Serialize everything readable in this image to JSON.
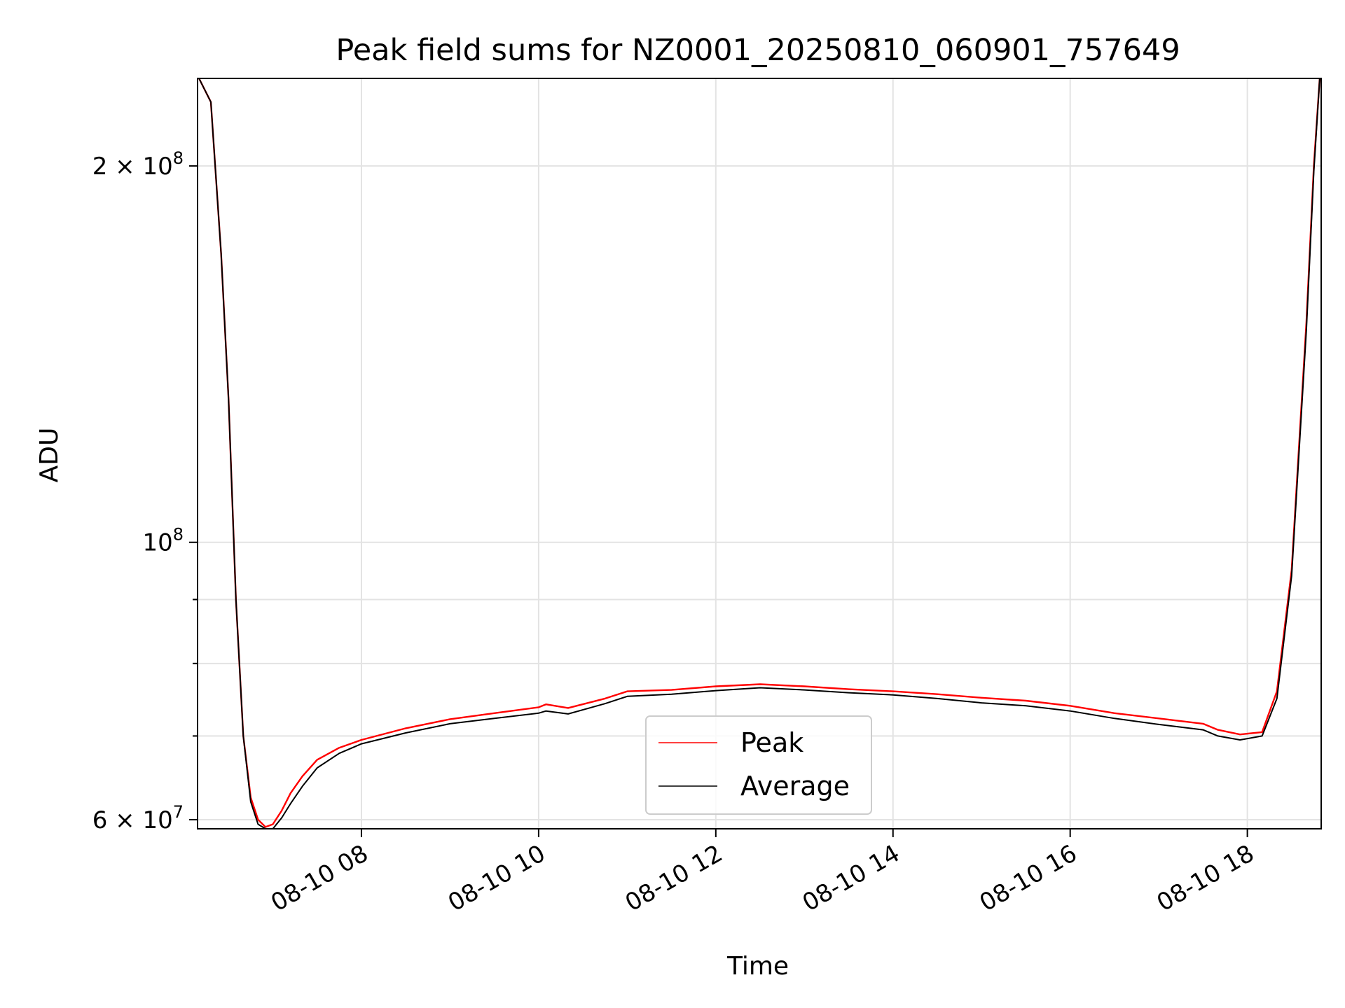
{
  "chart_data": {
    "type": "line",
    "title": "Peak field sums for NZ0001_20250810_060901_757649",
    "xlabel": "Time",
    "ylabel": "ADU",
    "yscale": "log",
    "grid": true,
    "legend_position": "bottom-center",
    "xlim": [
      "2025-08-10 06:09",
      "2025-08-10 18:50"
    ],
    "ylim": [
      59000000,
      235000000
    ],
    "x_ticks": [
      {
        "x": "2025-08-10 08:00",
        "label": "08-10 08"
      },
      {
        "x": "2025-08-10 10:00",
        "label": "08-10 10"
      },
      {
        "x": "2025-08-10 12:00",
        "label": "08-10 12"
      },
      {
        "x": "2025-08-10 14:00",
        "label": "08-10 14"
      },
      {
        "x": "2025-08-10 16:00",
        "label": "08-10 16"
      },
      {
        "x": "2025-08-10 18:00",
        "label": "08-10 18"
      }
    ],
    "y_ticks": [
      {
        "y": 60000000,
        "base": "6 × 10",
        "exp": "7"
      },
      {
        "y": 100000000,
        "base": "10",
        "exp": "8"
      },
      {
        "y": 200000000,
        "base": "2 × 10",
        "exp": "8"
      }
    ],
    "y_minor_ticks": [
      70000000,
      80000000,
      90000000
    ],
    "series": [
      {
        "name": "Peak",
        "color": "#ff0000",
        "x": [
          "2025-08-10 06:10",
          "2025-08-10 06:18",
          "2025-08-10 06:25",
          "2025-08-10 06:30",
          "2025-08-10 06:35",
          "2025-08-10 06:40",
          "2025-08-10 06:45",
          "2025-08-10 06:50",
          "2025-08-10 06:55",
          "2025-08-10 07:00",
          "2025-08-10 07:06",
          "2025-08-10 07:12",
          "2025-08-10 07:20",
          "2025-08-10 07:30",
          "2025-08-10 07:45",
          "2025-08-10 08:00",
          "2025-08-10 08:30",
          "2025-08-10 09:00",
          "2025-08-10 09:30",
          "2025-08-10 10:00",
          "2025-08-10 10:05",
          "2025-08-10 10:20",
          "2025-08-10 10:45",
          "2025-08-10 11:00",
          "2025-08-10 11:30",
          "2025-08-10 12:00",
          "2025-08-10 12:30",
          "2025-08-10 13:00",
          "2025-08-10 13:30",
          "2025-08-10 14:00",
          "2025-08-10 14:30",
          "2025-08-10 15:00",
          "2025-08-10 15:30",
          "2025-08-10 16:00",
          "2025-08-10 16:30",
          "2025-08-10 17:00",
          "2025-08-10 17:30",
          "2025-08-10 17:40",
          "2025-08-10 17:55",
          "2025-08-10 18:10",
          "2025-08-10 18:20",
          "2025-08-10 18:30",
          "2025-08-10 18:40",
          "2025-08-10 18:45",
          "2025-08-10 18:49"
        ],
        "y": [
          235000000,
          225000000,
          170000000,
          130000000,
          90000000,
          70000000,
          62500000,
          60000000,
          59200000,
          59500000,
          61000000,
          63000000,
          65000000,
          67000000,
          68500000,
          69500000,
          71000000,
          72200000,
          73000000,
          73800000,
          74200000,
          73700000,
          75000000,
          76000000,
          76200000,
          76700000,
          77000000,
          76700000,
          76300000,
          76000000,
          75600000,
          75100000,
          74700000,
          74000000,
          73000000,
          72300000,
          71600000,
          70800000,
          70200000,
          70500000,
          76000000,
          95000000,
          150000000,
          200000000,
          235000000
        ]
      },
      {
        "name": "Average",
        "color": "#000000",
        "x": [
          "2025-08-10 06:10",
          "2025-08-10 06:18",
          "2025-08-10 06:25",
          "2025-08-10 06:30",
          "2025-08-10 06:35",
          "2025-08-10 06:40",
          "2025-08-10 06:45",
          "2025-08-10 06:50",
          "2025-08-10 06:55",
          "2025-08-10 07:00",
          "2025-08-10 07:06",
          "2025-08-10 07:12",
          "2025-08-10 07:20",
          "2025-08-10 07:30",
          "2025-08-10 07:45",
          "2025-08-10 08:00",
          "2025-08-10 08:30",
          "2025-08-10 09:00",
          "2025-08-10 09:30",
          "2025-08-10 10:00",
          "2025-08-10 10:05",
          "2025-08-10 10:20",
          "2025-08-10 10:45",
          "2025-08-10 11:00",
          "2025-08-10 11:30",
          "2025-08-10 12:00",
          "2025-08-10 12:30",
          "2025-08-10 13:00",
          "2025-08-10 13:30",
          "2025-08-10 14:00",
          "2025-08-10 14:30",
          "2025-08-10 15:00",
          "2025-08-10 15:30",
          "2025-08-10 16:00",
          "2025-08-10 16:30",
          "2025-08-10 17:00",
          "2025-08-10 17:30",
          "2025-08-10 17:40",
          "2025-08-10 17:55",
          "2025-08-10 18:10",
          "2025-08-10 18:20",
          "2025-08-10 18:30",
          "2025-08-10 18:40",
          "2025-08-10 18:45",
          "2025-08-10 18:49"
        ],
        "y": [
          235000000,
          225000000,
          170000000,
          130000000,
          90000000,
          70000000,
          62000000,
          59500000,
          59000000,
          59000000,
          60200000,
          61800000,
          63800000,
          66000000,
          67800000,
          69000000,
          70400000,
          71600000,
          72300000,
          73000000,
          73300000,
          72900000,
          74300000,
          75300000,
          75600000,
          76100000,
          76500000,
          76200000,
          75800000,
          75500000,
          75000000,
          74400000,
          74000000,
          73300000,
          72300000,
          71500000,
          70800000,
          70000000,
          69500000,
          70000000,
          75000000,
          94000000,
          148000000,
          198000000,
          235000000
        ]
      }
    ]
  }
}
